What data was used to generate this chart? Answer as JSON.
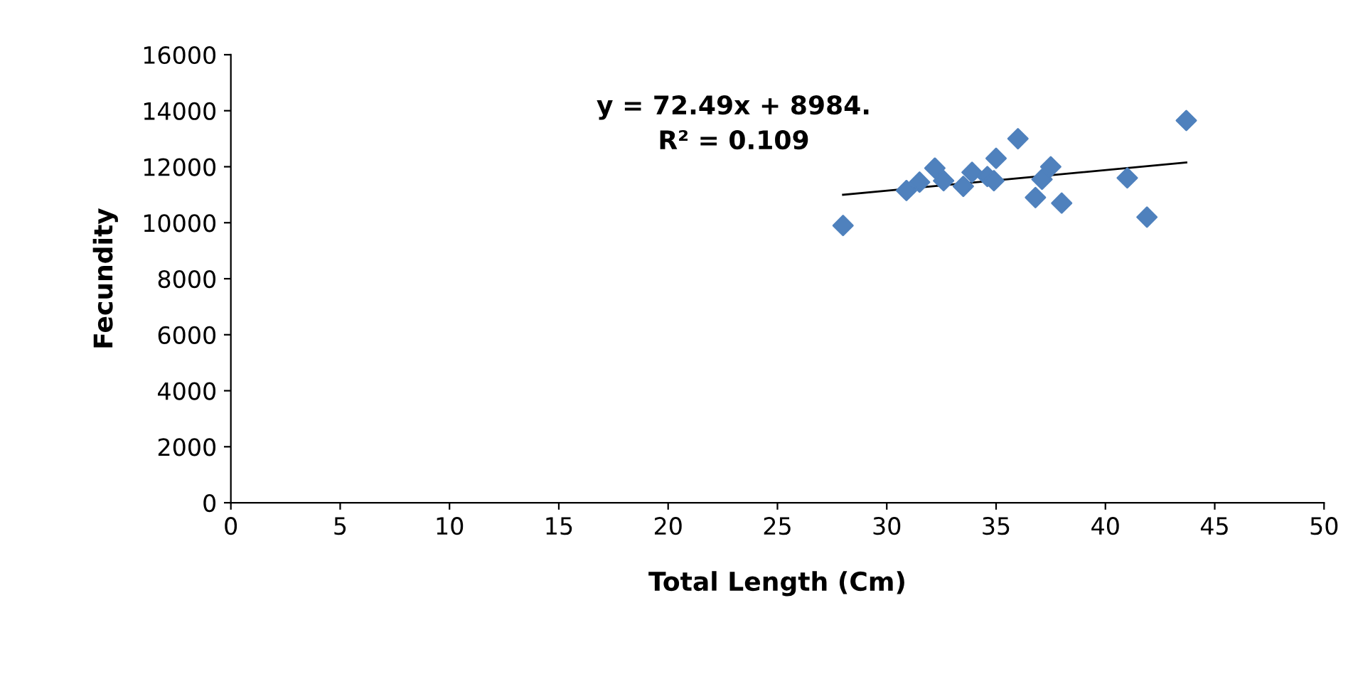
{
  "chart_data": {
    "type": "scatter",
    "xlabel": "Total Length (Cm)",
    "ylabel": "Fecundity",
    "xlim": [
      0,
      50
    ],
    "xticks": [
      0,
      5,
      10,
      15,
      20,
      25,
      30,
      35,
      40,
      45,
      50
    ],
    "ylim": [
      0,
      16000
    ],
    "yticks": [
      0,
      2000,
      4000,
      6000,
      8000,
      10000,
      12000,
      14000,
      16000
    ],
    "grid": false,
    "legend": false,
    "marker": "diamond",
    "annotations": [
      "y = 72.49x + 8984.\nR² = 0.109"
    ],
    "series": [
      {
        "color": "#4f81bd",
        "x": [
          28,
          30.9,
          31.5,
          32.2,
          32.6,
          33.5,
          33.9,
          34.6,
          35.0,
          34.9,
          36.0,
          36.8,
          37.1,
          37.5,
          38.0,
          41.0,
          41.9,
          43.7
        ],
        "values": [
          9900,
          11150,
          11450,
          11950,
          11500,
          11300,
          11800,
          11650,
          12300,
          11500,
          13000,
          10900,
          11550,
          12000,
          10700,
          11600,
          10200,
          13650
        ]
      },
      {
        "type": "line",
        "color": "#000000",
        "marker": "none",
        "x": [
          28,
          43.7
        ],
        "values": [
          11000,
          12150
        ]
      }
    ]
  }
}
